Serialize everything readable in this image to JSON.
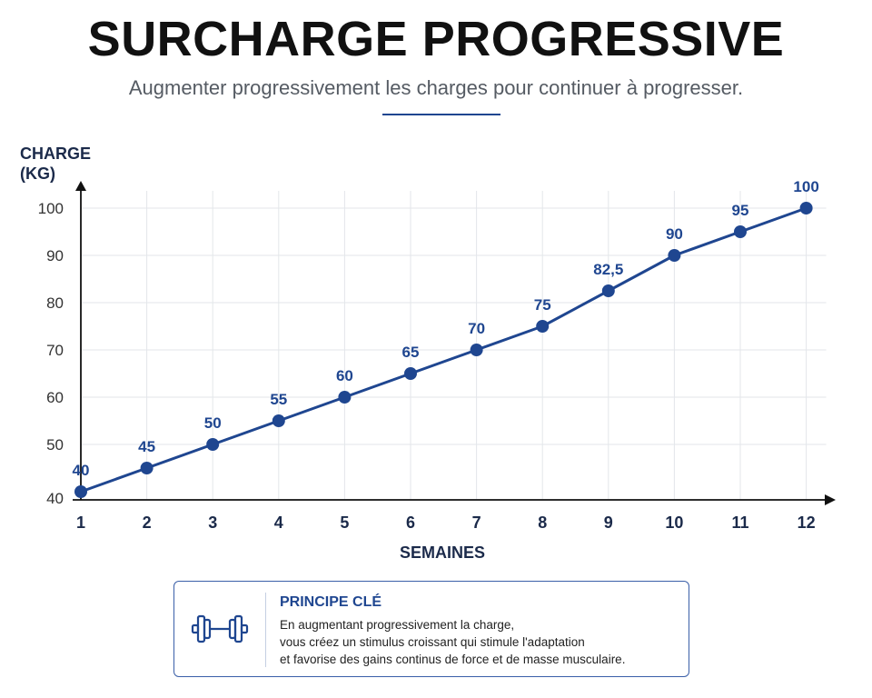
{
  "header": {
    "title": "SURCHARGE PROGRESSIVE",
    "subtitle": "Augmenter progressivement les charges pour continuer à progresser."
  },
  "chart_data": {
    "type": "line",
    "title": "SURCHARGE PROGRESSIVE",
    "ylabel_lines": [
      "CHARGE",
      "(KG)"
    ],
    "xlabel": "SEMAINES",
    "x": [
      1,
      2,
      3,
      4,
      5,
      6,
      7,
      8,
      9,
      10,
      11,
      12
    ],
    "values": [
      40,
      45,
      50,
      55,
      60,
      65,
      70,
      75,
      82.5,
      90,
      95,
      100
    ],
    "data_labels": [
      "40",
      "45",
      "50",
      "55",
      "60",
      "65",
      "70",
      "75",
      "82,5",
      "90",
      "95",
      "100"
    ],
    "y_ticks": [
      40,
      50,
      60,
      70,
      80,
      90,
      100
    ],
    "ylim": [
      40,
      100
    ],
    "grid": true,
    "line_color": "#1f4690"
  },
  "principle": {
    "title": "PRINCIPE CLÉ",
    "icon": "dumbbell-icon",
    "lines": [
      "En augmentant progressivement la charge,",
      "vous créez un stimulus croissant qui stimule l'adaptation",
      "et favorise des gains continus de force et de masse musculaire."
    ]
  }
}
